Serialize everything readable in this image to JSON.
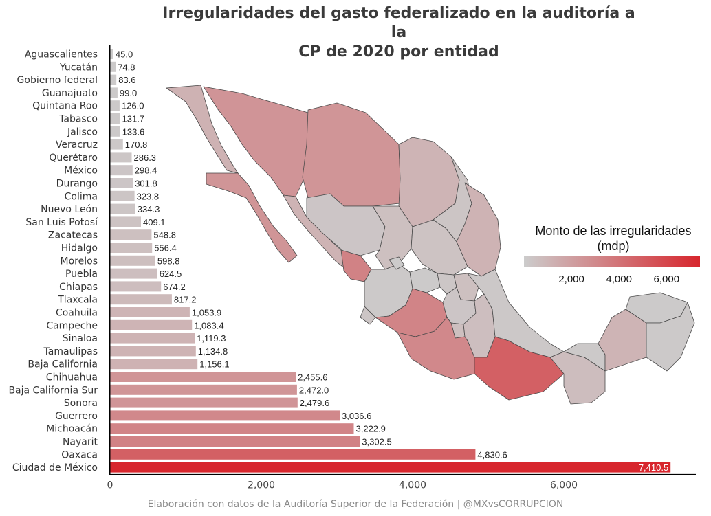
{
  "title_line1": "Irregularidades del gasto federalizado en la auditoría a la",
  "title_line2": "CP de 2020 por entidad",
  "caption": "Elaboración con datos de la Auditoría Superior de la Federación | @MXvsCORRUPCION",
  "legend": {
    "title_line1": "Monto de las irregularidades",
    "title_line2": "(mdp)",
    "ticks": [
      "2,000",
      "4,000",
      "6,000"
    ],
    "tick_values": [
      2000,
      4000,
      6000
    ],
    "range": [
      0,
      7410.5
    ],
    "color_low": "#cccccc",
    "color_high": "#d7262d"
  },
  "chart_data": {
    "type": "bar",
    "orientation": "horizontal",
    "title": "Irregularidades del gasto federalizado en la auditoría a la CP de 2020 por entidad",
    "xlim": [
      0,
      7600
    ],
    "xticks": [
      "0",
      "2,000",
      "4,000",
      "6,000"
    ],
    "xtick_values": [
      0,
      2000,
      4000,
      6000
    ],
    "grid": false,
    "categories": [
      "Aguascalientes",
      "Yucatán",
      "Gobierno federal",
      "Guanajuato",
      "Quintana Roo",
      "Tabasco",
      "Jalisco",
      "Veracruz",
      "Querétaro",
      "México",
      "Durango",
      "Colima",
      "Nuevo León",
      "San Luis Potosí",
      "Zacatecas",
      "Hidalgo",
      "Morelos",
      "Puebla",
      "Chiapas",
      "Tlaxcala",
      "Coahuila",
      "Campeche",
      "Sinaloa",
      "Tamaulipas",
      "Baja California",
      "Chihuahua",
      "Baja California Sur",
      "Sonora",
      "Guerrero",
      "Michoacán",
      "Nayarit",
      "Oaxaca",
      "Ciudad de México"
    ],
    "values": [
      45.0,
      74.8,
      83.6,
      99.0,
      126.0,
      131.7,
      133.6,
      170.8,
      286.3,
      298.4,
      301.8,
      323.8,
      334.3,
      409.1,
      548.8,
      556.4,
      598.8,
      624.5,
      674.2,
      817.2,
      1053.9,
      1083.4,
      1119.3,
      1134.8,
      1156.1,
      2455.6,
      2472.0,
      2479.6,
      3036.6,
      3222.9,
      3302.5,
      4830.6,
      7410.5
    ],
    "value_labels": [
      "45.0",
      "74.8",
      "83.6",
      "99.0",
      "126.0",
      "131.7",
      "133.6",
      "170.8",
      "286.3",
      "298.4",
      "301.8",
      "323.8",
      "334.3",
      "409.1",
      "548.8",
      "556.4",
      "598.8",
      "624.5",
      "674.2",
      "817.2",
      "1,053.9",
      "1,083.4",
      "1,119.3",
      "1,134.8",
      "1,156.1",
      "2,455.6",
      "2,472.0",
      "2,479.6",
      "3,036.6",
      "3,222.9",
      "3,302.5",
      "4,830.6",
      "7,410.5"
    ]
  },
  "map_data": {
    "type": "choropleth",
    "regions": [
      {
        "name": "Baja California",
        "value": 1156.1
      },
      {
        "name": "Baja California Sur",
        "value": 2472.0
      },
      {
        "name": "Sonora",
        "value": 2479.6
      },
      {
        "name": "Chihuahua",
        "value": 2455.6
      },
      {
        "name": "Coahuila",
        "value": 1053.9
      },
      {
        "name": "Nuevo León",
        "value": 334.3
      },
      {
        "name": "Tamaulipas",
        "value": 1134.8
      },
      {
        "name": "Sinaloa",
        "value": 1119.3
      },
      {
        "name": "Durango",
        "value": 301.8
      },
      {
        "name": "Zacatecas",
        "value": 548.8
      },
      {
        "name": "San Luis Potosí",
        "value": 409.1
      },
      {
        "name": "Nayarit",
        "value": 3302.5
      },
      {
        "name": "Jalisco",
        "value": 133.6
      },
      {
        "name": "Aguascalientes",
        "value": 45.0
      },
      {
        "name": "Guanajuato",
        "value": 99.0
      },
      {
        "name": "Querétaro",
        "value": 286.3
      },
      {
        "name": "Hidalgo",
        "value": 556.4
      },
      {
        "name": "Michoacán",
        "value": 3222.9
      },
      {
        "name": "México",
        "value": 298.4
      },
      {
        "name": "Ciudad de México",
        "value": 7410.5
      },
      {
        "name": "Morelos",
        "value": 598.8
      },
      {
        "name": "Tlaxcala",
        "value": 817.2
      },
      {
        "name": "Puebla",
        "value": 624.5
      },
      {
        "name": "Veracruz",
        "value": 170.8
      },
      {
        "name": "Colima",
        "value": 323.8
      },
      {
        "name": "Guerrero",
        "value": 3036.6
      },
      {
        "name": "Oaxaca",
        "value": 4830.6
      },
      {
        "name": "Chiapas",
        "value": 674.2
      },
      {
        "name": "Tabasco",
        "value": 131.7
      },
      {
        "name": "Campeche",
        "value": 1083.4
      },
      {
        "name": "Yucatán",
        "value": 74.8
      },
      {
        "name": "Quintana Roo",
        "value": 126.0
      }
    ]
  }
}
